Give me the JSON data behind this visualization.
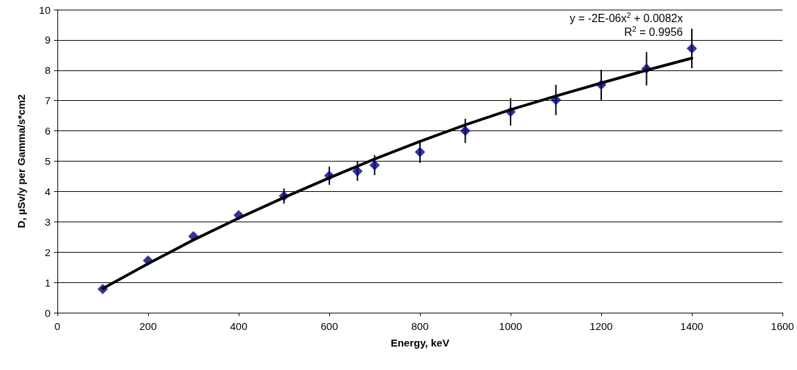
{
  "chart_data": {
    "type": "scatter",
    "xlabel": "Energy, keV",
    "ylabel": "D, µSv/y per Gamma/s*cm2",
    "xlim": [
      0,
      1600
    ],
    "xticks": [
      0,
      200,
      400,
      600,
      800,
      1000,
      1200,
      1400,
      1600
    ],
    "ylim": [
      0,
      10
    ],
    "yticks": [
      0,
      1,
      2,
      3,
      4,
      5,
      6,
      7,
      8,
      9,
      10
    ],
    "grid": "y",
    "annotations": [
      "y = -2E-06x$^{2}$ + 0.0082x",
      "R$^{2}$ = 0.9956"
    ],
    "series": [
      {
        "type": "scatter",
        "marker": "diamond",
        "color": "#000080",
        "x": [
          100,
          200,
          300,
          400,
          500,
          600,
          662,
          700,
          800,
          900,
          1000,
          1100,
          1200,
          1300,
          1400
        ],
        "values": [
          0.78,
          1.72,
          2.52,
          3.22,
          3.85,
          4.52,
          4.67,
          4.87,
          5.3,
          6.0,
          6.63,
          7.02,
          7.52,
          8.05,
          8.72
        ],
        "errors": [
          null,
          null,
          null,
          null,
          0.25,
          0.3,
          0.32,
          0.33,
          0.35,
          0.4,
          0.45,
          0.5,
          0.5,
          0.55,
          0.65
        ]
      },
      {
        "type": "line",
        "color": "#000000",
        "marker": "none",
        "line_style": "solid",
        "x": [
          100,
          200,
          300,
          400,
          500,
          600,
          700,
          800,
          900,
          1000,
          1100,
          1200,
          1300,
          1400
        ],
        "values": [
          0.8,
          1.62,
          2.4,
          3.12,
          3.8,
          4.45,
          5.07,
          5.65,
          6.2,
          6.7,
          7.15,
          7.58,
          8.0,
          8.4
        ]
      }
    ]
  }
}
